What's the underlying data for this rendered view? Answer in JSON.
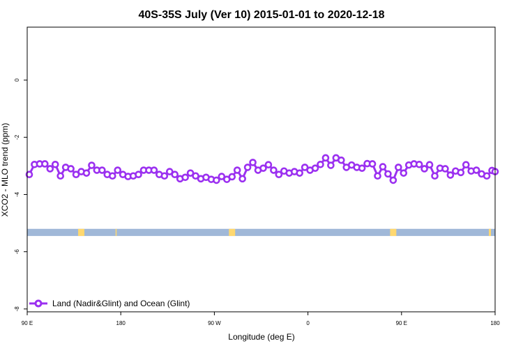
{
  "chart_data": {
    "type": "line",
    "title": "40S-35S July (Ver 10)   2015-01-01 to 2020-12-18",
    "xlabel": "Longitude (deg E)",
    "ylabel": "XCO2 - MLO trend (ppm)",
    "x_ticks": [
      {
        "value": 90,
        "label": "90 E"
      },
      {
        "value": 180,
        "label": "180"
      },
      {
        "value": 270,
        "label": "90 W"
      },
      {
        "value": 360,
        "label": "0"
      },
      {
        "value": 450,
        "label": "90 E"
      },
      {
        "value": 540,
        "label": "180"
      }
    ],
    "y_ticks": [
      {
        "value": 0,
        "label": "0"
      },
      {
        "value": -2,
        "label": "-2"
      },
      {
        "value": -4,
        "label": "-4"
      },
      {
        "value": -6,
        "label": "-6"
      },
      {
        "value": -8,
        "label": "-8"
      }
    ],
    "xlim": [
      90,
      540
    ],
    "ylim": [
      -8.1,
      1.85
    ],
    "grid": false,
    "legend_position": "bottom-left",
    "series": [
      {
        "name": "Land (Nadir&Glint) and Ocean (Glint)",
        "color": "#9b30f0",
        "x": [
          92,
          97,
          102,
          107,
          112,
          117,
          122,
          127,
          132,
          137,
          142,
          147,
          152,
          157,
          162,
          167,
          172,
          177,
          182,
          187,
          192,
          197,
          202,
          207,
          212,
          217,
          222,
          227,
          232,
          237,
          242,
          247,
          252,
          257,
          262,
          267,
          272,
          277,
          282,
          287,
          292,
          297,
          302,
          307,
          312,
          317,
          322,
          327,
          332,
          337,
          342,
          347,
          352,
          357,
          362,
          367,
          372,
          377,
          382,
          387,
          392,
          397,
          402,
          407,
          412,
          417,
          422,
          427,
          432,
          437,
          442,
          447,
          452,
          457,
          462,
          467,
          472,
          477,
          482,
          487,
          492,
          497,
          502,
          507,
          512,
          517,
          522,
          527,
          532,
          537,
          540
        ],
        "y": [
          -3.3,
          -2.95,
          -2.93,
          -2.93,
          -3.1,
          -2.95,
          -3.35,
          -3.05,
          -3.1,
          -3.3,
          -3.2,
          -3.25,
          -2.98,
          -3.15,
          -3.15,
          -3.3,
          -3.35,
          -3.15,
          -3.3,
          -3.37,
          -3.35,
          -3.3,
          -3.15,
          -3.15,
          -3.15,
          -3.3,
          -3.35,
          -3.2,
          -3.3,
          -3.45,
          -3.4,
          -3.25,
          -3.35,
          -3.45,
          -3.4,
          -3.47,
          -3.5,
          -3.37,
          -3.47,
          -3.38,
          -3.15,
          -3.45,
          -3.05,
          -2.88,
          -3.15,
          -3.08,
          -2.96,
          -3.15,
          -3.3,
          -3.18,
          -3.25,
          -3.2,
          -3.25,
          -3.05,
          -3.15,
          -3.08,
          -2.95,
          -2.72,
          -2.98,
          -2.72,
          -2.8,
          -3.05,
          -2.97,
          -3.05,
          -3.08,
          -2.92,
          -2.93,
          -3.35,
          -3.03,
          -3.28,
          -3.5,
          -3.05,
          -3.25,
          -2.97,
          -2.93,
          -2.95,
          -3.1,
          -2.96,
          -3.35,
          -3.08,
          -3.1,
          -3.32,
          -3.18,
          -3.23,
          -2.96,
          -3.18,
          -3.15,
          -3.28,
          -3.35,
          -3.16,
          -3.2
        ]
      }
    ],
    "land_ocean_band": {
      "ocean_color": "#a0b8d8",
      "land_color": "#ffd870",
      "y_top": -5.2,
      "y_bottom": -5.45,
      "land_segments": [
        [
          139,
          145
        ],
        [
          175,
          176
        ],
        [
          284,
          290
        ],
        [
          439,
          445
        ],
        [
          534,
          536
        ]
      ]
    }
  }
}
